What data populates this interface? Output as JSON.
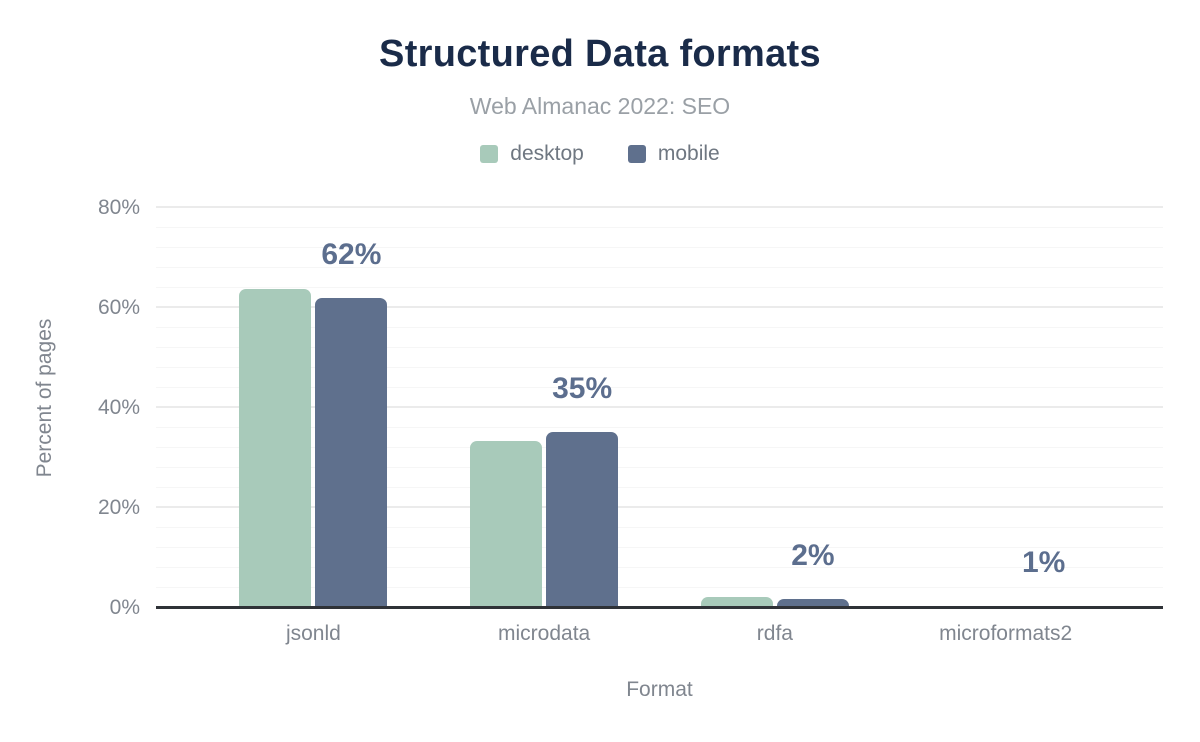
{
  "header": {
    "title": "Structured Data formats",
    "subtitle": "Web Almanac 2022: SEO"
  },
  "legend": [
    {
      "label": "desktop",
      "color": "#a8caba"
    },
    {
      "label": "mobile",
      "color": "#5f708d"
    }
  ],
  "axes": {
    "xlabel": "Format",
    "ylabel": "Percent of pages"
  },
  "chart_data": {
    "type": "bar",
    "title": "Structured Data formats",
    "subtitle": "Web Almanac 2022: SEO",
    "categories": [
      "jsonld",
      "microdata",
      "rdfa",
      "microformats2"
    ],
    "series": [
      {
        "name": "desktop",
        "color": "#a8caba",
        "values": [
          63.8,
          33.4,
          2.3,
          0.1
        ]
      },
      {
        "name": "mobile",
        "color": "#5f708d",
        "values": [
          62.0,
          35.3,
          1.9,
          0.5
        ]
      }
    ],
    "bar_labels": [
      "62%",
      "35%",
      "2%",
      "1%"
    ],
    "xlabel": "Format",
    "ylabel": "Percent of pages",
    "ylim": [
      0,
      80
    ],
    "yticks": [
      0,
      20,
      40,
      60,
      80
    ],
    "ytick_suffix": "%",
    "grid": "horizontal, major every 20%, minor every 4%",
    "legend_position": "top"
  },
  "style": {
    "title_color": "#1a2b49",
    "subtitle_color": "#9aa0a6",
    "axis_text_color": "#80868f",
    "data_label_color": "#5c6e8e",
    "axis_line_color": "#2f3237",
    "major_grid_color": "#ebebeb",
    "minor_grid_color": "#f6f6f6",
    "background": "#ffffff"
  }
}
